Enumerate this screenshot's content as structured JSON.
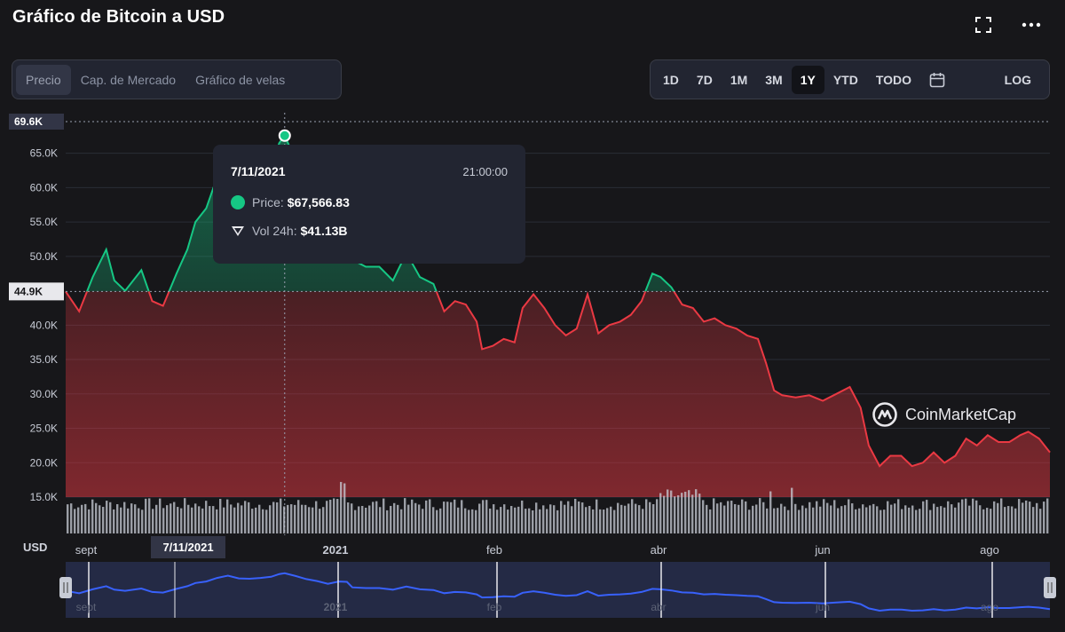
{
  "header": {
    "title": "Gráfico de Bitcoin a USD",
    "fullscreen_icon": "fullscreen-icon",
    "more_icon": "more-options-icon"
  },
  "view_tabs": [
    {
      "label": "Precio",
      "active": true
    },
    {
      "label": "Cap. de Mercado",
      "active": false
    },
    {
      "label": "Gráfico de velas",
      "active": false
    }
  ],
  "ranges": [
    {
      "label": "1D",
      "active": false
    },
    {
      "label": "7D",
      "active": false
    },
    {
      "label": "1M",
      "active": false
    },
    {
      "label": "3M",
      "active": false
    },
    {
      "label": "1Y",
      "active": true
    },
    {
      "label": "YTD",
      "active": false
    },
    {
      "label": "TODO",
      "active": false
    }
  ],
  "calendar_icon": "calendar-icon",
  "log_label": "LOG",
  "tooltip": {
    "date": "7/11/2021",
    "time": "21:00:00",
    "price_label": "Price:",
    "price_value": "$67,566.83",
    "volume_label": "Vol 24h:",
    "volume_value": "$41.13B"
  },
  "currency_label": "USD",
  "crosshair_date": "7/11/2021",
  "brand": "CoinMarketCap",
  "colors": {
    "up": "#16c784",
    "down": "#ea3943",
    "navigator": "#3861fb",
    "background": "#17171a"
  },
  "chart_data": {
    "type": "line",
    "title": "Gráfico de Bitcoin a USD",
    "ylabel": "USD",
    "ylim": [
      15000,
      69600
    ],
    "y_ticks": [
      "15.0K",
      "20.0K",
      "25.0K",
      "30.0K",
      "35.0K",
      "40.0K",
      "45.0K",
      "50.0K",
      "55.0K",
      "60.0K",
      "65.0K"
    ],
    "high_label": "69.6K",
    "open_label": "44.9K",
    "x_ticks": [
      "sept",
      "2021",
      "feb",
      "abr",
      "jun",
      "ago"
    ],
    "baseline": 44900,
    "high": 69600,
    "series": [
      {
        "x": [
          "2021-08-21",
          "2021-08-26",
          "2021-08-31",
          "2021-09-05",
          "2021-09-08",
          "2021-09-12",
          "2021-09-18",
          "2021-09-22",
          "2021-09-26",
          "2021-10-01",
          "2021-10-05",
          "2021-10-08",
          "2021-10-12",
          "2021-10-16",
          "2021-10-20",
          "2021-10-24",
          "2021-10-28",
          "2021-11-01",
          "2021-11-05",
          "2021-11-08",
          "2021-11-10",
          "2021-11-14",
          "2021-11-18",
          "2021-11-22",
          "2021-11-26",
          "2021-11-30",
          "2021-12-03",
          "2021-12-05",
          "2021-12-10",
          "2021-12-15",
          "2021-12-20",
          "2021-12-25",
          "2021-12-30",
          "2022-01-04",
          "2022-01-08",
          "2022-01-12",
          "2022-01-16",
          "2022-01-20",
          "2022-01-22",
          "2022-01-26",
          "2022-01-30",
          "2022-02-03",
          "2022-02-06",
          "2022-02-10",
          "2022-02-14",
          "2022-02-18",
          "2022-02-22",
          "2022-02-26",
          "2022-03-02",
          "2022-03-06",
          "2022-03-10",
          "2022-03-14",
          "2022-03-18",
          "2022-03-22",
          "2022-03-26",
          "2022-03-29",
          "2022-04-02",
          "2022-04-06",
          "2022-04-10",
          "2022-04-14",
          "2022-04-18",
          "2022-04-22",
          "2022-04-26",
          "2022-04-30",
          "2022-05-04",
          "2022-05-07",
          "2022-05-10",
          "2022-05-13",
          "2022-05-18",
          "2022-05-23",
          "2022-05-28",
          "2022-06-02",
          "2022-06-07",
          "2022-06-11",
          "2022-06-14",
          "2022-06-18",
          "2022-06-22",
          "2022-06-26",
          "2022-06-30",
          "2022-07-04",
          "2022-07-08",
          "2022-07-12",
          "2022-07-16",
          "2022-07-20",
          "2022-07-24",
          "2022-07-28",
          "2022-08-01",
          "2022-08-05",
          "2022-08-09",
          "2022-08-12",
          "2022-08-16",
          "2022-08-20"
        ],
        "values": [
          44900,
          42000,
          47000,
          51000,
          46500,
          45000,
          48000,
          43500,
          42800,
          47500,
          51000,
          55000,
          57000,
          61500,
          64500,
          61000,
          60500,
          61500,
          63000,
          66500,
          67566,
          64000,
          60000,
          57500,
          54000,
          57000,
          56500,
          49500,
          48500,
          48500,
          46500,
          50500,
          47000,
          46000,
          42000,
          43500,
          43000,
          40500,
          36500,
          37000,
          38000,
          37500,
          42500,
          44500,
          42500,
          40000,
          38500,
          39500,
          44500,
          38800,
          40000,
          40500,
          41500,
          43500,
          47500,
          47000,
          45500,
          43000,
          42500,
          40500,
          41000,
          40000,
          39500,
          38500,
          38000,
          34500,
          30500,
          29800,
          29500,
          29800,
          29000,
          30000,
          31000,
          28000,
          22500,
          19500,
          21000,
          21000,
          19500,
          20000,
          21500,
          20000,
          21000,
          23500,
          22500,
          24000,
          23000,
          23000,
          24000,
          24500,
          23500,
          21500
        ]
      }
    ],
    "volume_range_label": "Vol 24h",
    "navigator_ticks": [
      "sept",
      "2021",
      "feb",
      "abr",
      "jun",
      "ago"
    ],
    "legend": "none",
    "grid": true
  }
}
